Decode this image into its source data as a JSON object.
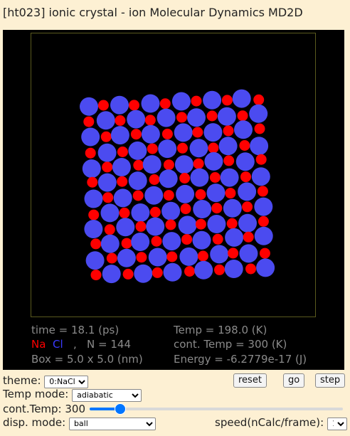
{
  "title": "[ht023] ionic crystal - ion Molecular Dynamics MD2D",
  "info": {
    "time": "time = 18.1 (ps)",
    "na": "Na",
    "cl": "Cl",
    "comma": ",",
    "n": "N = 144",
    "box": "Box = 5.0 x 5.0 (nm)",
    "temp": "Temp = 198.0 (K)",
    "cont_temp": "cont. Temp = 300 (K)",
    "energy": "Energy = -6.2779e-17 (J)"
  },
  "controls": {
    "theme_label": "theme:",
    "theme_value": "0:NaCl",
    "reset": "reset",
    "go": "go",
    "step": "step",
    "temp_mode_label": "Temp mode:",
    "temp_mode_value": "adiabatic",
    "cont_temp_label": "cont.Temp: 300",
    "cont_temp_value": 300,
    "cont_temp_fraction": 0.12,
    "disp_mode_label": "disp. mode:",
    "disp_mode_value": "ball",
    "speed_label": "speed(nCalc/frame):",
    "speed_value": "1"
  },
  "colors": {
    "background": "#fdf0d3",
    "canvas": "#000000",
    "box_border": "#5a5a1e",
    "na": "#ff0000",
    "cl": "#4b4bf0",
    "info_text": "#8a8a8a"
  },
  "simulation": {
    "lattice_rows": 12,
    "lattice_cols": 12,
    "particle_count": 144,
    "species": [
      "Na",
      "Cl"
    ]
  }
}
